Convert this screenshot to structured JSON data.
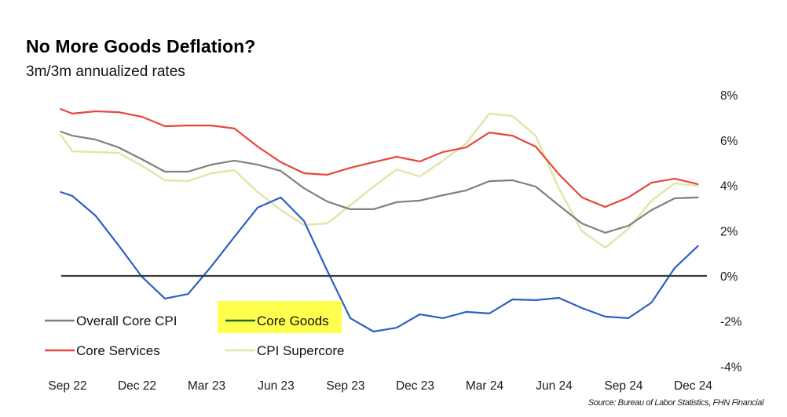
{
  "title": "No More Goods Deflation?",
  "subtitle": "3m/3m annualized rates",
  "source": "Source: Bureau of Labor Statistics, FHN Financial",
  "highlight_color": "#ffff4d",
  "chart_data": {
    "type": "line",
    "title": "No More Goods Deflation?",
    "subtitle": "3m/3m annualized rates",
    "xlabel": "",
    "ylabel": "",
    "ylim": [
      -4,
      8
    ],
    "y_ticks": [
      8,
      6,
      4,
      2,
      0,
      -2,
      -4
    ],
    "y_tick_labels": [
      "8%",
      "6%",
      "4%",
      "2%",
      "0%",
      "-2%",
      "-4%"
    ],
    "y_axis_side": "right",
    "x_tick_labels": [
      "Sep 22",
      "Dec 22",
      "Mar 23",
      "Jun 23",
      "Sep 23",
      "Dec 23",
      "Mar 24",
      "Jun 24",
      "Sep 24",
      "Dec 24"
    ],
    "x_tick_positions": [
      1,
      4,
      7,
      10,
      13,
      16,
      19,
      22,
      25,
      28
    ],
    "x": [
      0.5,
      1,
      2,
      3,
      4,
      5,
      6,
      7,
      8,
      9,
      10,
      11,
      12,
      13,
      14,
      15,
      16,
      17,
      18,
      19,
      20,
      21,
      22,
      23,
      24,
      25,
      26,
      27,
      28
    ],
    "x_note": "monthly index: 1 = Sep 22 ... 28 = Dec 24",
    "zero_line": true,
    "grid": false,
    "legend_position": "bottom-left",
    "series": [
      {
        "name": "Overall Core CPI",
        "color": "#7f7f7f",
        "legend_color": "#7f7f7f",
        "values": [
          6.38,
          6.2,
          6.03,
          5.68,
          5.16,
          4.61,
          4.61,
          4.92,
          5.1,
          4.92,
          4.64,
          3.88,
          3.29,
          2.95,
          2.95,
          3.26,
          3.33,
          3.57,
          3.78,
          4.19,
          4.23,
          3.95,
          3.12,
          2.32,
          1.91,
          2.22,
          2.91,
          3.43,
          3.47
        ]
      },
      {
        "name": "Core Goods",
        "color": "#2e5fc4",
        "legend_color": "#1f6b1f",
        "highlighted": true,
        "values": [
          3.71,
          3.54,
          2.67,
          1.35,
          -0.03,
          -1.0,
          -0.8,
          0.42,
          1.73,
          3.02,
          3.47,
          2.43,
          0.24,
          -1.87,
          -2.46,
          -2.29,
          -1.7,
          -1.87,
          -1.59,
          -1.66,
          -1.04,
          -1.07,
          -0.97,
          -1.42,
          -1.8,
          -1.87,
          -1.18,
          0.35,
          1.32
        ]
      },
      {
        "name": "Core Services",
        "color": "#e8453c",
        "legend_color": "#e8453c",
        "values": [
          7.38,
          7.18,
          7.28,
          7.24,
          7.04,
          6.62,
          6.65,
          6.65,
          6.52,
          5.72,
          5.03,
          4.54,
          4.47,
          4.78,
          5.03,
          5.27,
          5.06,
          5.48,
          5.68,
          6.34,
          6.2,
          5.72,
          4.5,
          3.47,
          3.05,
          3.47,
          4.12,
          4.3,
          4.06
        ]
      },
      {
        "name": "CPI Supercore",
        "color": "#e2e5a6",
        "legend_color": "#e2e5a6",
        "values": [
          6.24,
          5.51,
          5.48,
          5.44,
          4.88,
          4.23,
          4.19,
          4.54,
          4.68,
          3.71,
          2.91,
          2.25,
          2.32,
          3.12,
          3.95,
          4.71,
          4.4,
          5.1,
          5.86,
          7.18,
          7.07,
          6.2,
          3.88,
          1.98,
          1.25,
          2.08,
          3.33,
          4.09,
          3.99
        ]
      }
    ],
    "legend_order": [
      "Overall Core CPI",
      "Core Goods",
      "Core Services",
      "CPI Supercore"
    ]
  }
}
